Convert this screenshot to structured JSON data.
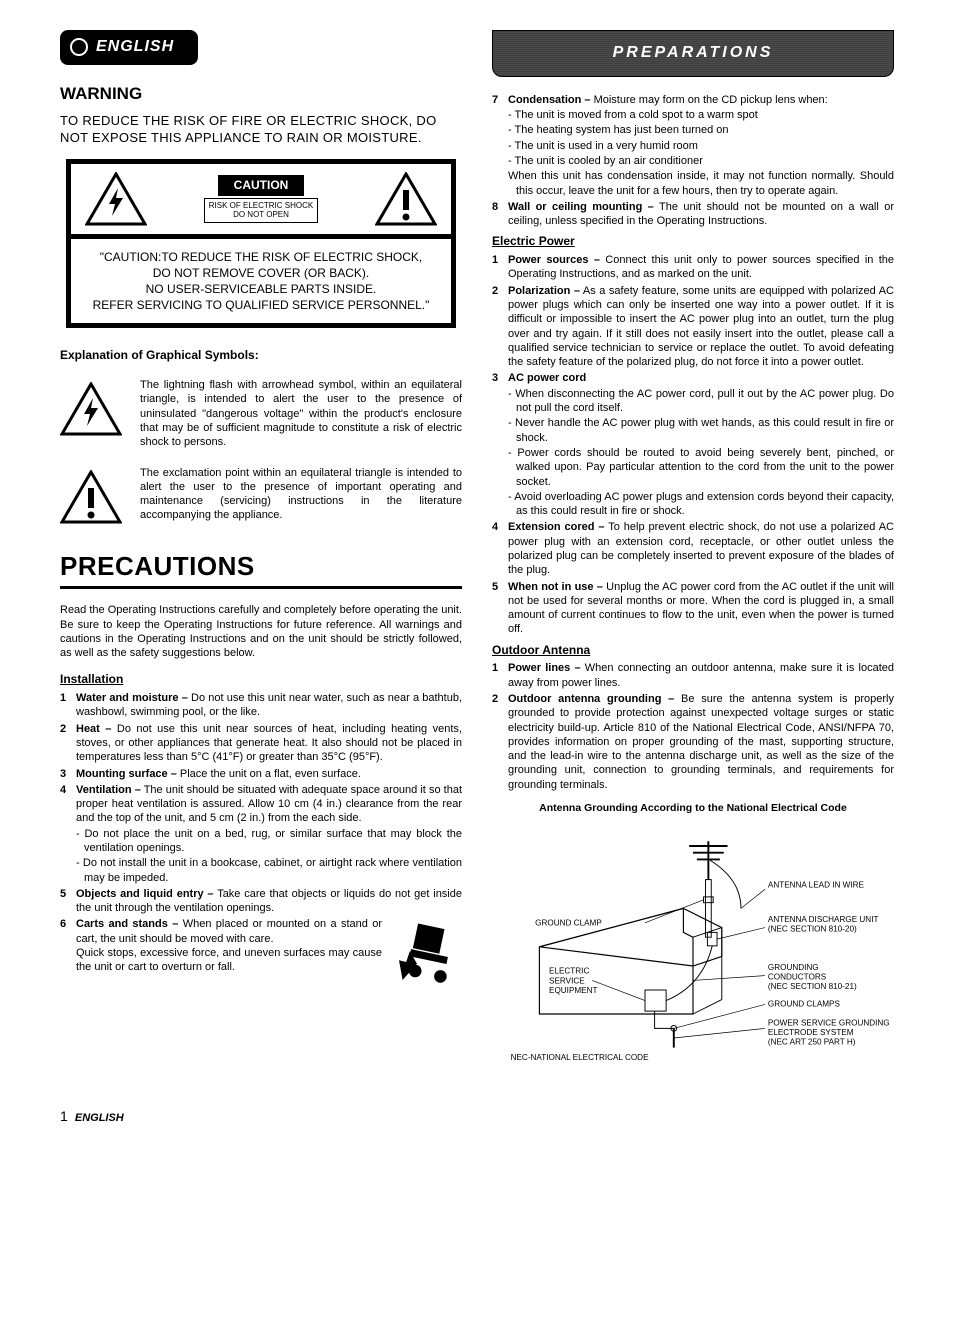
{
  "lang_badge": "ENGLISH",
  "prep_ribbon": "PREPARATIONS",
  "warning_heading": "WARNING",
  "warning_text": "TO REDUCE THE RISK OF FIRE OR ELECTRIC SHOCK, DO NOT EXPOSE THIS APPLIANCE TO RAIN OR MOISTURE.",
  "caution": {
    "label": "CAUTION",
    "sub1": "RISK OF ELECTRIC SHOCK",
    "sub2": "DO NOT OPEN",
    "body": "\"CAUTION:TO REDUCE THE RISK OF ELECTRIC SHOCK,\nDO NOT REMOVE COVER (OR BACK).\nNO USER-SERVICEABLE PARTS INSIDE.\nREFER SERVICING TO QUALIFIED SERVICE PERSONNEL.\""
  },
  "sym_title": "Explanation of Graphical Symbols:",
  "sym_lightning": "The lightning flash with arrowhead symbol, within an equilateral triangle, is intended to alert the user to the presence of uninsulated \"dangerous voltage\" within the product's enclosure that may be of sufficient magnitude to constitute a risk of electric shock to persons.",
  "sym_exclaim": "The exclamation point within an equilateral triangle is intended to alert the user to the presence of important operating and maintenance (servicing) instructions in the literature accompanying the appliance.",
  "precautions_heading": "PRECAUTIONS",
  "precautions_intro": "Read the Operating Instructions carefully and completely before operating the unit. Be sure to keep the Operating Instructions for future reference. All warnings and cautions in the Operating Instructions and on the unit should be strictly followed, as well as the safety suggestions below.",
  "install_head": "Installation",
  "install": [
    {
      "n": "1",
      "lead": "Water and moisture –",
      "rest": " Do not use this unit near water, such as near a bathtub, washbowl, swimming pool, or the like."
    },
    {
      "n": "2",
      "lead": "Heat –",
      "rest": " Do not use this unit near sources of heat, including heating vents, stoves, or other appliances that generate heat. It also should not be placed in temperatures less than 5°C (41°F) or greater than 35°C (95°F)."
    },
    {
      "n": "3",
      "lead": "Mounting surface –",
      "rest": " Place the unit on a flat, even surface."
    },
    {
      "n": "4",
      "lead": "Ventilation –",
      "rest": " The unit should be situated with adequate space around it so that proper heat ventilation is assured. Allow 10 cm (4 in.) clearance from the rear and the top of the unit, and 5 cm (2 in.) from the each side."
    },
    {
      "n": "5",
      "lead": "Objects and liquid entry –",
      "rest": " Take care that objects or liquids do not get inside the unit through the ventilation openings."
    },
    {
      "n": "6",
      "lead": "Carts and stands –",
      "rest": " When placed or mounted on a stand or cart, the unit should be moved with care.\nQuick stops, excessive force, and uneven surfaces may cause the unit or cart to overturn or fall."
    }
  ],
  "install4_subs": [
    "- Do not place the unit on a bed, rug, or similar surface that may block the ventilation openings.",
    "- Do not install the unit in a bookcase, cabinet, or airtight rack where ventilation may be impeded."
  ],
  "right_top": [
    {
      "n": "7",
      "lead": "Condensation –",
      "rest": " Moisture may form on the CD pickup lens when:"
    },
    {
      "n": "8",
      "lead": "Wall or ceiling mounting –",
      "rest": " The unit should not be mounted on a wall or ceiling, unless specified in the Operating Instructions."
    }
  ],
  "cond_subs": [
    "- The unit is moved from a cold spot to a warm spot",
    "- The heating system has just been turned on",
    "- The unit is used in a very humid room",
    "- The unit is cooled by an air conditioner",
    "When this unit has condensation inside, it may not function normally. Should this occur, leave the unit for a few hours, then try to operate again."
  ],
  "electric_head": "Electric Power",
  "electric": [
    {
      "n": "1",
      "lead": "Power sources –",
      "rest": " Connect this unit only to power sources specified in the Operating Instructions, and as marked on the unit."
    },
    {
      "n": "2",
      "lead": "Polarization –",
      "rest": " As a safety feature, some units are equipped with polarized AC power plugs which can only be inserted one way into a power outlet. If it is difficult or impossible to insert the AC power plug into an outlet, turn the plug over and try again. If it still does not easily insert into the outlet, please call a qualified service technician to service or replace the outlet. To avoid defeating the safety feature of the polarized plug, do not force it into a power outlet."
    },
    {
      "n": "3",
      "lead": "AC power cord",
      "rest": ""
    },
    {
      "n": "4",
      "lead": "Extension cored –",
      "rest": " To help prevent electric shock, do not use a polarized AC power plug with an extension cord, receptacle, or other outlet unless the polarized plug can be completely inserted to prevent exposure of the blades of the plug."
    },
    {
      "n": "5",
      "lead": "When not in use –",
      "rest": " Unplug the AC power cord from the AC outlet if the unit will not be used for several months or more. When the cord is plugged in, a small amount of current continues to flow to the unit, even when the power is turned off."
    }
  ],
  "ac_subs": [
    "- When disconnecting the AC power cord, pull it out by the AC power plug. Do not pull the cord itself.",
    "- Never handle the AC power plug with wet hands, as this could result in fire or shock.",
    "- Power cords should be routed to avoid being severely bent, pinched, or walked upon. Pay particular attention to the cord from the unit to the power socket.",
    "- Avoid overloading AC power plugs and extension cords beyond their capacity, as this could result in fire or shock."
  ],
  "outdoor_head": "Outdoor Antenna",
  "outdoor": [
    {
      "n": "1",
      "lead": "Power lines –",
      "rest": " When connecting an outdoor antenna, make sure it is located away from power lines."
    },
    {
      "n": "2",
      "lead": "Outdoor antenna grounding –",
      "rest": " Be sure the antenna system is properly grounded to provide protection against unexpected voltage surges or static electricity build-up. Article 810 of the National Electrical Code, ANSI/NFPA 70, provides information on proper grounding of the mast, supporting structure, and the lead-in wire to the antenna discharge unit, as well as the size of the grounding unit, connection to grounding terminals, and requirements for grounding terminals."
    }
  ],
  "ant_title": "Antenna Grounding According to the National Electrical Code",
  "ant_labels": {
    "lead_wire": "ANTENNA LEAD IN WIRE",
    "discharge": "ANTENNA DISCHARGE UNIT\n(NEC SECTION 810-20)",
    "ground_clamp": "GROUND CLAMP",
    "electric_service": "ELECTRIC\nSERVICE\nEQUIPMENT",
    "grounding_cond": "GROUNDING\nCONDUCTORS\n(NEC SECTION 810-21)",
    "ground_clamps2": "GROUND CLAMPS",
    "power_service": "POWER SERVICE GROUNDING\nELECTRODE SYSTEM\n(NEC ART 250 PART H)",
    "nec": "NEC-NATIONAL ELECTRICAL CODE"
  },
  "footer_page": "1",
  "footer_lang": "ENGLISH"
}
